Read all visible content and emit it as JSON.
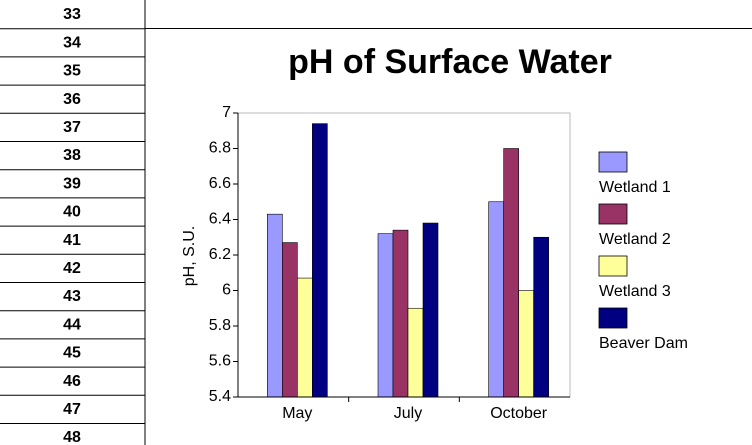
{
  "row_headers": [
    33,
    34,
    35,
    36,
    37,
    38,
    39,
    40,
    41,
    42,
    43,
    44,
    45,
    46,
    47,
    48
  ],
  "chart_data": {
    "type": "bar",
    "title": "pH of Surface Water",
    "y_label": "pH, S.U.",
    "categories": [
      "May",
      "July",
      "October"
    ],
    "series": [
      {
        "name": "Wetland 1",
        "color": "#9999ff",
        "values": [
          6.43,
          6.32,
          6.5
        ]
      },
      {
        "name": "Wetland 2",
        "color": "#993366",
        "values": [
          6.27,
          6.34,
          6.8
        ]
      },
      {
        "name": "Wetland 3",
        "color": "#ffff99",
        "values": [
          6.07,
          5.9,
          6.0
        ]
      },
      {
        "name": "Beaver Dam",
        "color": "#000080",
        "values": [
          6.94,
          6.38,
          6.3
        ]
      }
    ],
    "ylim": [
      5.4,
      7
    ],
    "yticks": [
      5.4,
      5.6,
      5.8,
      6,
      6.2,
      6.4,
      6.6,
      6.8,
      7
    ],
    "legend": "right"
  }
}
